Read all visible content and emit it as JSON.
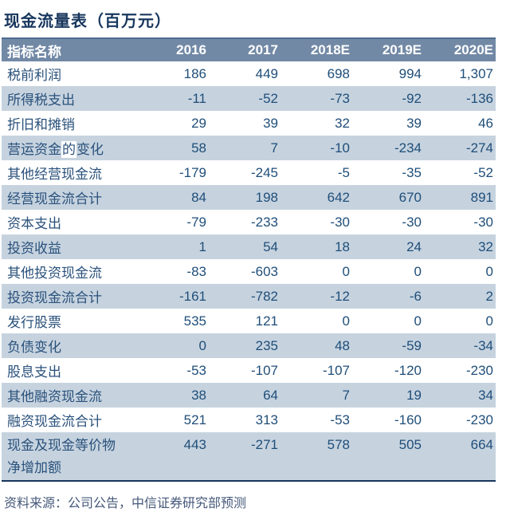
{
  "title": "现金流量表（百万元）",
  "colors": {
    "title_text": "#17365D",
    "header_bg": "#7289A6",
    "header_top_border": "#4C6C90",
    "header_text": "#FFFFFF",
    "alt_row_bg": "#C6D3DF",
    "label_text": "#2A517B",
    "number_text": "#1F4E79",
    "bottom_border": "#17365D",
    "source_text": "#46597A"
  },
  "table": {
    "header": [
      "指标名称",
      "2016",
      "2017",
      "2018E",
      "2019E",
      "2020E"
    ],
    "rows": [
      {
        "label": "税前利润",
        "values": [
          "186",
          "449",
          "698",
          "994",
          "1,307"
        ]
      },
      {
        "label": "所得税支出",
        "values": [
          "-11",
          "-52",
          "-73",
          "-92",
          "-136"
        ]
      },
      {
        "label": "折旧和摊销",
        "values": [
          "29",
          "39",
          "32",
          "39",
          "46"
        ]
      },
      {
        "label": "营运资金的变化",
        "label_parts": [
          "营运资金",
          "的",
          "变化"
        ],
        "highlight_part": 1,
        "values": [
          "58",
          "7",
          "-10",
          "-234",
          "-274"
        ]
      },
      {
        "label": "其他经营现金流",
        "values": [
          "-179",
          "-245",
          "-5",
          "-35",
          "-52"
        ]
      },
      {
        "label": "经营现金流合计",
        "values": [
          "84",
          "198",
          "642",
          "670",
          "891"
        ]
      },
      {
        "label": "资本支出",
        "values": [
          "-79",
          "-233",
          "-30",
          "-30",
          "-30"
        ]
      },
      {
        "label": "投资收益",
        "values": [
          "1",
          "54",
          "18",
          "24",
          "32"
        ]
      },
      {
        "label": "其他投资现金流",
        "values": [
          "-83",
          "-603",
          "0",
          "0",
          "0"
        ]
      },
      {
        "label": "投资现金流合计",
        "values": [
          "-161",
          "-782",
          "-12",
          "-6",
          "2"
        ]
      },
      {
        "label": "发行股票",
        "values": [
          "535",
          "121",
          "0",
          "0",
          "0"
        ]
      },
      {
        "label": "负债变化",
        "values": [
          "0",
          "235",
          "48",
          "-59",
          "-34"
        ]
      },
      {
        "label": "股息支出",
        "values": [
          "-53",
          "-107",
          "-107",
          "-120",
          "-230"
        ]
      },
      {
        "label": "其他融资现金流",
        "values": [
          "38",
          "64",
          "7",
          "19",
          "34"
        ]
      },
      {
        "label": "融资现金流合计",
        "values": [
          "521",
          "313",
          "-53",
          "-160",
          "-230"
        ]
      },
      {
        "label": "现金及现金等价物净增加额",
        "label_lines": [
          "现金及现金等价物",
          "净增加额"
        ],
        "values": [
          "443",
          "-271",
          "578",
          "505",
          "664"
        ]
      }
    ]
  },
  "footer": {
    "source": "资料来源：公司公告，中信证券研究部预测"
  }
}
